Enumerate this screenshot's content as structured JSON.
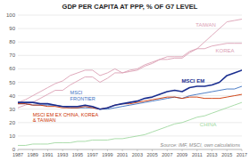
{
  "chart_data": {
    "type": "line",
    "title": "GDP PER CAPITA AT PPP, % OF G7 LEVEL",
    "x": [
      1987,
      1988,
      1989,
      1990,
      1991,
      1992,
      1993,
      1994,
      1995,
      1996,
      1997,
      1998,
      1999,
      2000,
      2001,
      2002,
      2003,
      2004,
      2005,
      2006,
      2007,
      2008,
      2009,
      2010,
      2011,
      2012,
      2013,
      2014,
      2015,
      2016,
      2017
    ],
    "series": [
      {
        "name": "TAIWAN",
        "color": "#dba0b4",
        "values": [
          35,
          37,
          40,
          43,
          46,
          49,
          51,
          55,
          57,
          59,
          59,
          55,
          57,
          60,
          57,
          58,
          59,
          62,
          64,
          67,
          67,
          68,
          68,
          72,
          75,
          80,
          85,
          90,
          95,
          96,
          97
        ]
      },
      {
        "name": "KOREA",
        "color": "#dba0b4",
        "values": [
          31,
          33,
          35,
          38,
          41,
          44,
          44,
          48,
          51,
          54,
          54,
          50,
          53,
          57,
          57,
          59,
          60,
          63,
          65,
          67,
          69,
          69,
          69,
          73,
          75,
          75,
          77,
          78,
          79,
          79,
          79
        ]
      },
      {
        "name": "MSCI EM",
        "color": "#1a2e8f",
        "values": [
          35,
          35,
          35,
          34,
          34,
          33,
          32,
          32,
          32,
          33,
          32,
          30,
          31,
          33,
          34,
          35,
          36,
          38,
          39,
          41,
          43,
          44,
          43,
          46,
          47,
          47,
          48,
          50,
          55,
          57,
          59
        ]
      },
      {
        "name": "MSCI\nFRONTIER",
        "color": "#3a6fbf",
        "values": [
          34,
          34,
          33,
          33,
          33,
          33,
          32,
          31,
          31,
          31,
          31,
          30,
          30,
          31,
          32,
          33,
          34,
          35,
          36,
          37,
          38,
          39,
          38,
          40,
          41,
          42,
          43,
          44,
          45,
          45,
          47
        ]
      },
      {
        "name": "MSCI EM EX CHINA, KOREA\n& TAIWAN",
        "color": "#cc3300",
        "values": [
          34,
          34,
          33,
          33,
          32,
          32,
          31,
          31,
          31,
          32,
          31,
          30,
          31,
          33,
          34,
          34,
          35,
          36,
          37,
          38,
          39,
          39,
          38,
          39,
          39,
          38,
          38,
          38,
          39,
          40,
          41
        ]
      },
      {
        "name": "CHINA",
        "color": "#a0d8a0",
        "values": [
          3,
          3,
          4,
          4,
          4,
          5,
          5,
          5,
          6,
          6,
          7,
          7,
          7,
          8,
          8,
          9,
          10,
          11,
          13,
          15,
          17,
          19,
          20,
          22,
          24,
          25,
          27,
          29,
          31,
          33,
          35
        ]
      }
    ],
    "xlim": [
      1987,
      2017
    ],
    "xticks": [
      1987,
      1989,
      1991,
      1993,
      1995,
      1997,
      1999,
      2001,
      2003,
      2005,
      2007,
      2009,
      2011,
      2013,
      2015,
      2017
    ],
    "ylim": [
      0,
      100
    ],
    "yticks": [
      0,
      10,
      20,
      30,
      40,
      50,
      60,
      70,
      80,
      90,
      100
    ],
    "grid": "y",
    "annotations": [
      {
        "text": "Source: IMF, MSCI, own calculations"
      }
    ]
  }
}
